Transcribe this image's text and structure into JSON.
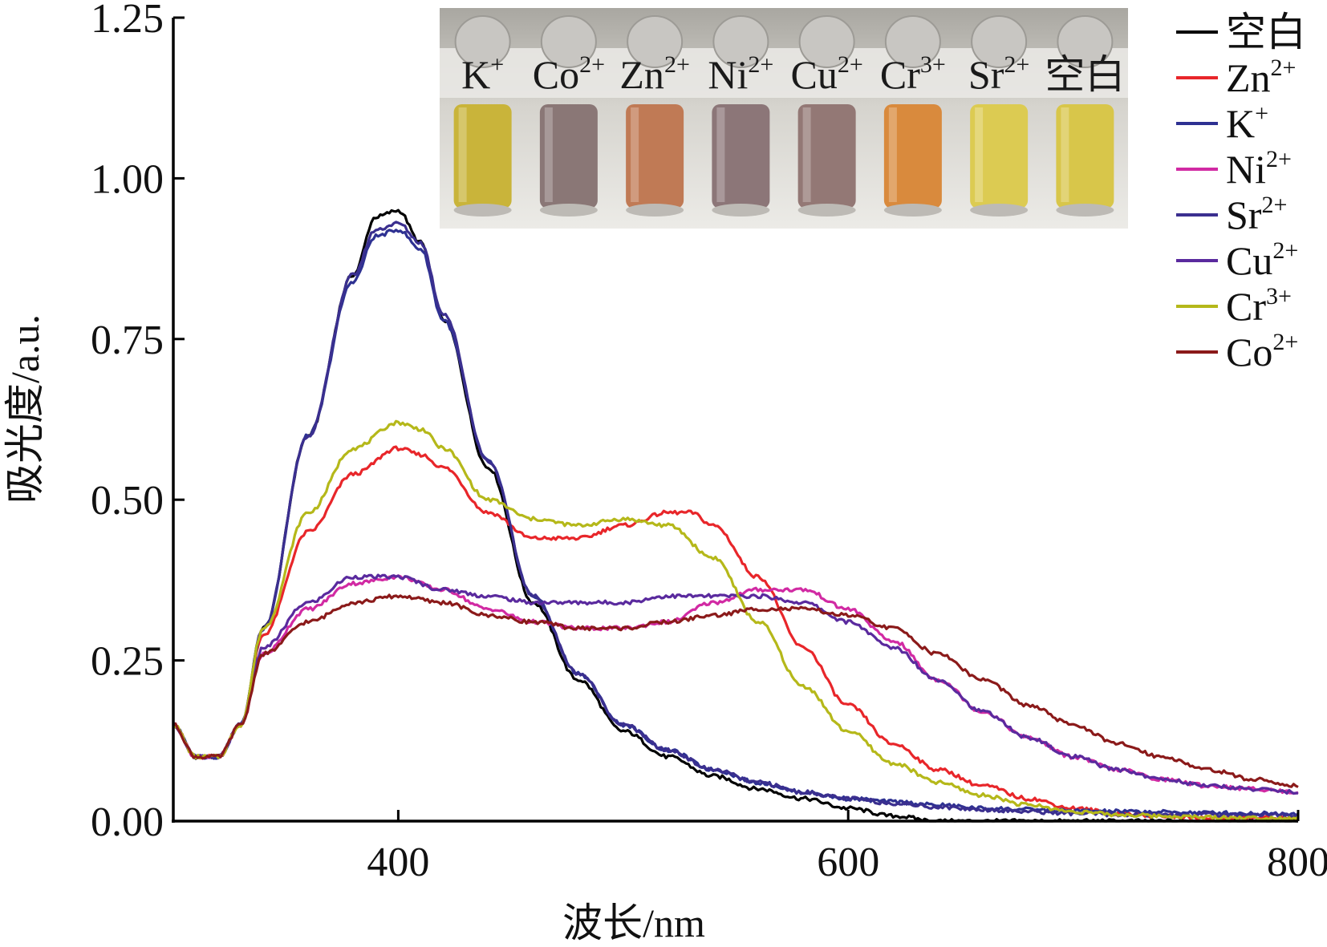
{
  "chart_data": {
    "type": "line",
    "xlabel": "波长/nm",
    "ylabel": "吸光度/a.u.",
    "xlim": [
      300,
      800
    ],
    "ylim": [
      0,
      1.25
    ],
    "x_ticks": [
      "400",
      "600",
      "800"
    ],
    "x_tick_values": [
      400,
      600,
      800
    ],
    "y_ticks": [
      "0.00",
      "0.25",
      "0.50",
      "0.75",
      "1.00",
      "1.25"
    ],
    "y_tick_values": [
      0,
      0.25,
      0.5,
      0.75,
      1.0,
      1.25
    ],
    "grid": false,
    "legend_position": "top-right",
    "series": [
      {
        "name": "空白",
        "base": "空白",
        "sup": "",
        "color": "#000000",
        "x": [
          300,
          310,
          320,
          330,
          340,
          360,
          380,
          390,
          400,
          410,
          420,
          440,
          460,
          480,
          500,
          520,
          540,
          560,
          580,
          600,
          620,
          640,
          660,
          680,
          700,
          720,
          740,
          760,
          780,
          800
        ],
        "y": [
          0.15,
          0.1,
          0.1,
          0.15,
          0.3,
          0.6,
          0.85,
          0.94,
          0.95,
          0.9,
          0.78,
          0.55,
          0.34,
          0.22,
          0.14,
          0.1,
          0.07,
          0.05,
          0.035,
          0.02,
          0.008,
          0.0,
          0.0,
          0.0,
          0.0,
          0.0,
          0.0,
          0.0,
          0.0,
          0.0
        ]
      },
      {
        "name": "Zn2+",
        "base": "Zn",
        "sup": "2+",
        "color": "#e8262a",
        "x": [
          300,
          310,
          320,
          330,
          340,
          360,
          380,
          400,
          410,
          420,
          440,
          460,
          480,
          500,
          520,
          530,
          540,
          560,
          580,
          600,
          620,
          640,
          660,
          680,
          700,
          720,
          740,
          760,
          780,
          800
        ],
        "y": [
          0.15,
          0.1,
          0.1,
          0.15,
          0.29,
          0.45,
          0.54,
          0.58,
          0.57,
          0.55,
          0.48,
          0.44,
          0.44,
          0.46,
          0.48,
          0.48,
          0.46,
          0.38,
          0.27,
          0.18,
          0.12,
          0.08,
          0.055,
          0.035,
          0.02,
          0.012,
          0.008,
          0.005,
          0.005,
          0.005
        ]
      },
      {
        "name": "K+",
        "base": "K",
        "sup": "+",
        "color": "#2e3192",
        "x": [
          300,
          310,
          320,
          330,
          340,
          360,
          380,
          390,
          400,
          410,
          420,
          440,
          460,
          480,
          500,
          520,
          540,
          560,
          580,
          600,
          620,
          640,
          660,
          680,
          700,
          720,
          740,
          760,
          780,
          800
        ],
        "y": [
          0.15,
          0.1,
          0.1,
          0.15,
          0.3,
          0.6,
          0.84,
          0.91,
          0.92,
          0.89,
          0.78,
          0.56,
          0.35,
          0.23,
          0.15,
          0.11,
          0.08,
          0.06,
          0.045,
          0.035,
          0.03,
          0.025,
          0.02,
          0.018,
          0.016,
          0.015,
          0.014,
          0.013,
          0.012,
          0.012
        ]
      },
      {
        "name": "Ni2+",
        "base": "Ni",
        "sup": "2+",
        "color": "#d12aa3",
        "x": [
          300,
          310,
          320,
          330,
          340,
          360,
          380,
          400,
          420,
          440,
          460,
          480,
          500,
          520,
          540,
          560,
          580,
          600,
          620,
          640,
          660,
          680,
          700,
          720,
          740,
          760,
          780,
          800
        ],
        "y": [
          0.15,
          0.1,
          0.1,
          0.15,
          0.26,
          0.33,
          0.37,
          0.38,
          0.36,
          0.33,
          0.31,
          0.3,
          0.3,
          0.31,
          0.34,
          0.36,
          0.36,
          0.33,
          0.28,
          0.22,
          0.17,
          0.13,
          0.1,
          0.08,
          0.065,
          0.055,
          0.05,
          0.045
        ]
      },
      {
        "name": "Sr2+",
        "base": "Sr",
        "sup": "2+",
        "color": "#3b2f8f",
        "x": [
          300,
          310,
          320,
          330,
          340,
          360,
          380,
          390,
          400,
          410,
          420,
          440,
          460,
          480,
          500,
          520,
          540,
          560,
          580,
          600,
          620,
          640,
          660,
          680,
          700,
          720,
          740,
          760,
          780,
          800
        ],
        "y": [
          0.15,
          0.1,
          0.1,
          0.15,
          0.3,
          0.6,
          0.85,
          0.92,
          0.93,
          0.9,
          0.79,
          0.56,
          0.35,
          0.23,
          0.15,
          0.11,
          0.08,
          0.06,
          0.045,
          0.035,
          0.028,
          0.022,
          0.018,
          0.015,
          0.012,
          0.01,
          0.01,
          0.01,
          0.01,
          0.01
        ]
      },
      {
        "name": "Cu2+",
        "base": "Cu",
        "sup": "2+",
        "color": "#5a2a9e",
        "x": [
          300,
          310,
          320,
          330,
          340,
          360,
          380,
          400,
          420,
          440,
          460,
          480,
          500,
          520,
          540,
          560,
          580,
          600,
          620,
          640,
          660,
          680,
          700,
          720,
          740,
          760,
          780,
          800
        ],
        "y": [
          0.15,
          0.1,
          0.1,
          0.15,
          0.27,
          0.34,
          0.38,
          0.38,
          0.36,
          0.35,
          0.34,
          0.34,
          0.34,
          0.35,
          0.35,
          0.35,
          0.34,
          0.31,
          0.27,
          0.22,
          0.17,
          0.13,
          0.1,
          0.08,
          0.065,
          0.055,
          0.05,
          0.045
        ]
      },
      {
        "name": "Cr3+",
        "base": "Cr",
        "sup": "3+",
        "color": "#b5b81a",
        "x": [
          300,
          310,
          320,
          330,
          340,
          360,
          380,
          400,
          410,
          420,
          440,
          460,
          480,
          500,
          520,
          540,
          560,
          580,
          600,
          620,
          640,
          660,
          680,
          700,
          720,
          740,
          760,
          780,
          800
        ],
        "y": [
          0.15,
          0.1,
          0.1,
          0.15,
          0.3,
          0.48,
          0.58,
          0.62,
          0.61,
          0.58,
          0.5,
          0.47,
          0.46,
          0.47,
          0.46,
          0.41,
          0.31,
          0.21,
          0.14,
          0.09,
          0.06,
          0.04,
          0.025,
          0.015,
          0.01,
          0.008,
          0.006,
          0.005,
          0.005
        ]
      },
      {
        "name": "Co2+",
        "base": "Co",
        "sup": "2+",
        "color": "#8b1a1a",
        "x": [
          300,
          310,
          320,
          330,
          340,
          360,
          380,
          400,
          420,
          440,
          460,
          480,
          500,
          520,
          540,
          560,
          580,
          600,
          620,
          640,
          660,
          680,
          700,
          720,
          740,
          760,
          780,
          800
        ],
        "y": [
          0.15,
          0.1,
          0.1,
          0.15,
          0.26,
          0.31,
          0.34,
          0.35,
          0.34,
          0.32,
          0.31,
          0.3,
          0.3,
          0.31,
          0.32,
          0.33,
          0.33,
          0.32,
          0.3,
          0.26,
          0.22,
          0.18,
          0.15,
          0.12,
          0.1,
          0.08,
          0.065,
          0.055
        ]
      }
    ]
  },
  "inset_photo": {
    "vials": [
      {
        "base": "K",
        "sup": "+",
        "color": "#c9b43a"
      },
      {
        "base": "Co",
        "sup": "2+",
        "color": "#8a7776"
      },
      {
        "base": "Zn",
        "sup": "2+",
        "color": "#c07a55"
      },
      {
        "base": "Ni",
        "sup": "2+",
        "color": "#8c7678"
      },
      {
        "base": "Cu",
        "sup": "2+",
        "color": "#937875"
      },
      {
        "base": "Cr",
        "sup": "3+",
        "color": "#d98a3d"
      },
      {
        "base": "Sr",
        "sup": "2+",
        "color": "#dccb52"
      },
      {
        "base": "空白",
        "sup": "",
        "color": "#d8c64a"
      }
    ]
  }
}
